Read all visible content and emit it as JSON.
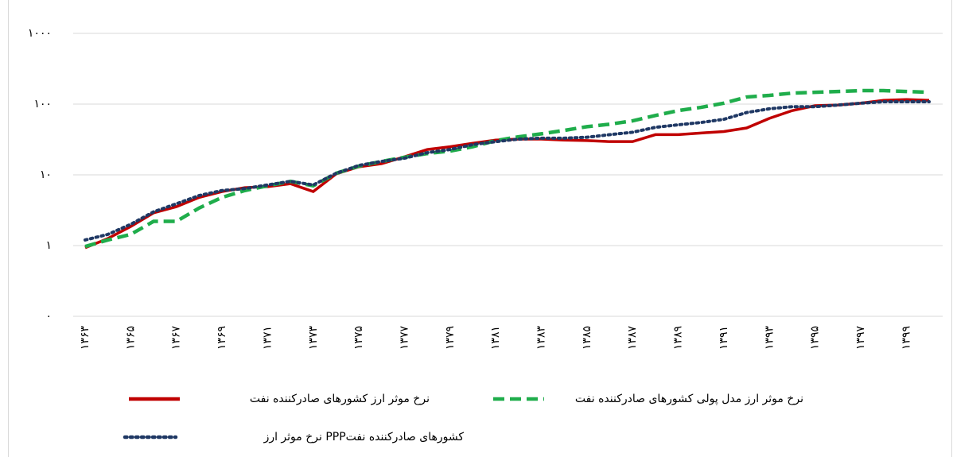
{
  "chart_data": {
    "type": "line",
    "log_scale": true,
    "grid": true,
    "legend": "bottom",
    "categories": [
      "۱۳۶۳",
      null,
      "۱۳۶۵",
      null,
      "۱۳۶۷",
      null,
      "۱۳۶۹",
      null,
      "۱۳۷۱",
      null,
      "۱۳۷۳",
      null,
      "۱۳۷۵",
      null,
      "۱۳۷۷",
      null,
      "۱۳۷۹",
      null,
      "۱۳۸۱",
      null,
      "۱۳۸۳",
      null,
      "۱۳۸۵",
      null,
      "۱۳۸۷",
      null,
      "۱۳۸۹",
      null,
      "۱۳۹۱",
      null,
      "۱۳۹۳",
      null,
      "۱۳۹۵",
      null,
      "۱۳۹۷",
      null,
      "۱۳۹۹",
      null
    ],
    "ylim": [
      0.1,
      1000
    ],
    "yticks": [
      {
        "value": 0.1,
        "label": "۰"
      },
      {
        "value": 1,
        "label": "۱"
      },
      {
        "value": 10,
        "label": "۱۰"
      },
      {
        "value": 100,
        "label": "۱۰۰"
      },
      {
        "value": 1000,
        "label": "۱۰۰۰"
      }
    ],
    "series": [
      {
        "name": "نرخ موثر ارز کشورهای صادرکننده نفت",
        "color": "#c00000",
        "dash": "solid",
        "values": [
          0.93,
          1.26,
          1.86,
          2.9,
          3.55,
          4.8,
          5.8,
          6.6,
          6.8,
          7.5,
          5.8,
          10.3,
          13,
          14.4,
          18,
          22.8,
          25,
          28,
          31,
          32,
          32,
          31,
          30.5,
          29.5,
          29.5,
          37,
          37,
          39,
          41,
          46,
          63,
          81,
          95,
          97,
          103,
          113,
          116,
          113
        ]
      },
      {
        "name": "نرخ موثر ارز مدل پولی کشورهای صادرکننده نفت",
        "color": "#1fad4b",
        "dash": "dashed",
        "values": [
          0.97,
          1.2,
          1.44,
          2.2,
          2.2,
          3.4,
          4.8,
          6,
          7,
          8.1,
          7,
          10.5,
          13.3,
          15.5,
          17.7,
          20,
          21.7,
          25,
          30.5,
          34.5,
          38,
          42.5,
          48,
          52,
          58,
          69,
          81,
          90,
          103,
          126,
          133,
          143,
          147,
          151,
          155,
          155,
          151,
          147
        ]
      },
      {
        "name": "نرخ موثر ارز  PPPکشورهای صادرکننده نفت",
        "color": "#1f3864",
        "dash": "dotted",
        "values": [
          1.2,
          1.44,
          2,
          3,
          3.9,
          5.1,
          6,
          6.4,
          7.2,
          8.1,
          7.2,
          10.5,
          13.6,
          15.5,
          17.2,
          20.6,
          22.8,
          26.8,
          29.5,
          32,
          33,
          33,
          34,
          37,
          40,
          47,
          51,
          55,
          61,
          76,
          86,
          92,
          92,
          97,
          103,
          108,
          108,
          108
        ]
      }
    ]
  }
}
